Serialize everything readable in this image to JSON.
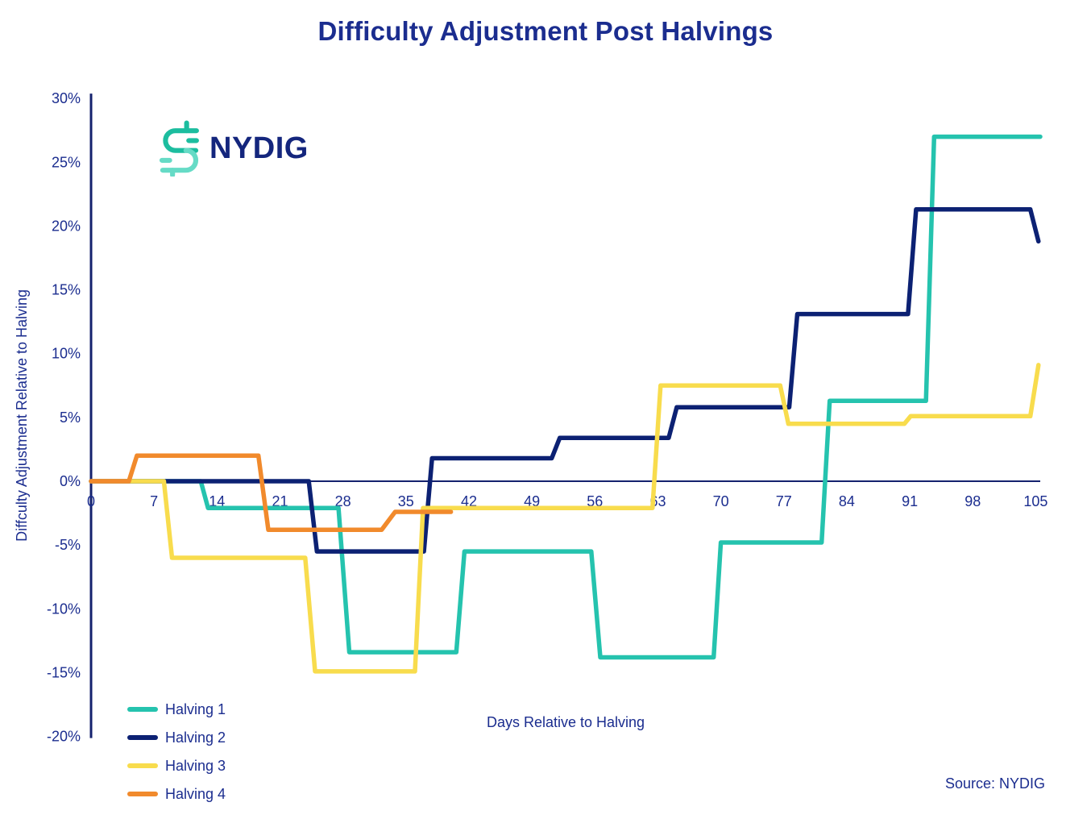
{
  "title": "Difficulty Adjustment Post Halvings",
  "logo": {
    "brand": "NYDIG",
    "mark": "dollar-pipe-icon"
  },
  "source": "Source: NYDIG",
  "colors": {
    "text": "#1b2d8f",
    "axis": "#14226e",
    "background": "#ffffff",
    "logo_teal": "#1cbd9f",
    "logo_mint": "#66dbc6",
    "logo_text": "#14267d"
  },
  "chart_data": {
    "type": "line",
    "subtype": "step",
    "title": "Difficulty Adjustment Post Halvings",
    "xlabel": "Days Relative to Halving",
    "ylabel": "Diffculty Adjustment Relative to Halving",
    "x_ticks": [
      0,
      7,
      14,
      21,
      28,
      35,
      42,
      49,
      56,
      63,
      70,
      77,
      84,
      91,
      98,
      105
    ],
    "y_ticks": [
      30,
      25,
      20,
      15,
      10,
      5,
      0,
      -5,
      -10,
      -15,
      -20
    ],
    "y_tick_suffix": "%",
    "xlim": [
      0,
      105.5
    ],
    "ylim": [
      -20,
      30
    ],
    "grid": false,
    "zero_line": true,
    "legend_position": "bottom-left",
    "series": [
      {
        "name": "Halving 1",
        "color": "#25c3ae",
        "points": [
          [
            0,
            0
          ],
          [
            12.2,
            0
          ],
          [
            13,
            -2.1
          ],
          [
            27.5,
            -2.1
          ],
          [
            28.7,
            -13.4
          ],
          [
            40.6,
            -13.4
          ],
          [
            41.5,
            -5.5
          ],
          [
            55.6,
            -5.5
          ],
          [
            56.6,
            -13.8
          ],
          [
            69.2,
            -13.8
          ],
          [
            70,
            -4.8
          ],
          [
            81.2,
            -4.8
          ],
          [
            82.1,
            6.3
          ],
          [
            92.8,
            6.3
          ],
          [
            93.7,
            27
          ],
          [
            105.5,
            27
          ]
        ]
      },
      {
        "name": "Halving 2",
        "color": "#0c2173",
        "points": [
          [
            0,
            0
          ],
          [
            24.2,
            0
          ],
          [
            25.1,
            -5.5
          ],
          [
            37,
            -5.5
          ],
          [
            37.9,
            1.8
          ],
          [
            51.2,
            1.8
          ],
          [
            52.1,
            3.4
          ],
          [
            64.2,
            3.4
          ],
          [
            65.1,
            5.8
          ],
          [
            77.6,
            5.8
          ],
          [
            78.5,
            13.1
          ],
          [
            90.8,
            13.1
          ],
          [
            91.7,
            21.3
          ],
          [
            104.4,
            21.3
          ],
          [
            105.3,
            18.8
          ]
        ]
      },
      {
        "name": "Halving 3",
        "color": "#f8dc4d",
        "points": [
          [
            0,
            0
          ],
          [
            8.1,
            0
          ],
          [
            9,
            -6
          ],
          [
            23.8,
            -6
          ],
          [
            24.9,
            -14.9
          ],
          [
            36,
            -14.9
          ],
          [
            36.9,
            -2.1
          ],
          [
            62.4,
            -2.1
          ],
          [
            63.3,
            7.5
          ],
          [
            76.6,
            7.5
          ],
          [
            77.5,
            4.5
          ],
          [
            90.4,
            4.5
          ],
          [
            91.1,
            5.1
          ],
          [
            104.4,
            5.1
          ],
          [
            105.3,
            9.1
          ]
        ]
      },
      {
        "name": "Halving 4",
        "color": "#f18a2c",
        "points": [
          [
            0,
            0
          ],
          [
            4.2,
            0
          ],
          [
            5.1,
            2
          ],
          [
            18.6,
            2
          ],
          [
            19.7,
            -3.8
          ],
          [
            32.3,
            -3.8
          ],
          [
            33.8,
            -2.4
          ],
          [
            40,
            -2.4
          ]
        ]
      }
    ]
  }
}
